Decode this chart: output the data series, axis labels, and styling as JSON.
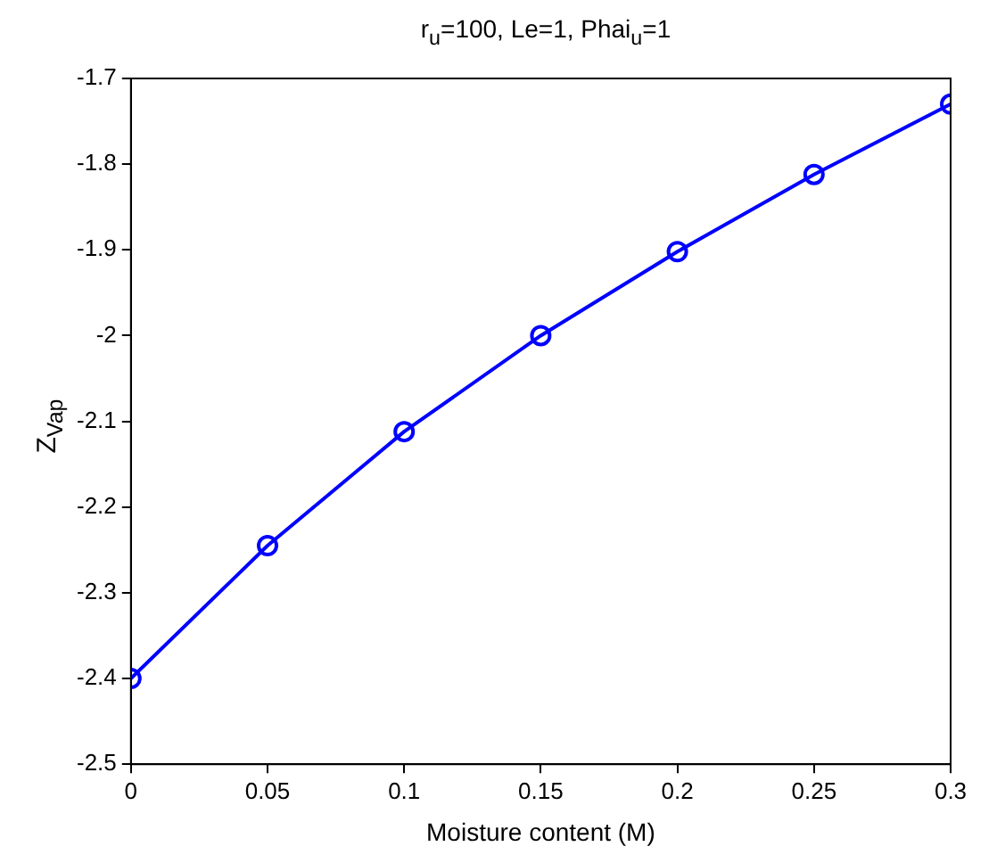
{
  "chart_data": {
    "type": "line",
    "title": "r$_{u}$=100, Le=1, Phai$_{u}$=1",
    "xlabel": "Moisture content (M)",
    "ylabel": "Z$_{Vap}$",
    "x": [
      0,
      0.05,
      0.1,
      0.15,
      0.2,
      0.25,
      0.3
    ],
    "series": [
      {
        "color": "#0000ff",
        "values": [
          -2.4,
          -2.245,
          -2.112,
          -2.0,
          -1.902,
          -1.812,
          -1.73
        ]
      }
    ],
    "xlim": [
      0,
      0.3
    ],
    "xticks": [
      0,
      0.05,
      0.1,
      0.15,
      0.2,
      0.25,
      0.3
    ],
    "ylim": [
      -2.5,
      -1.7
    ],
    "yticks": [
      -2.5,
      -2.4,
      -2.3,
      -2.2,
      -2.1,
      -2,
      -1.9,
      -1.8,
      -1.7
    ],
    "grid": false,
    "legend": false,
    "marker": "circle",
    "line_style": "solid"
  }
}
